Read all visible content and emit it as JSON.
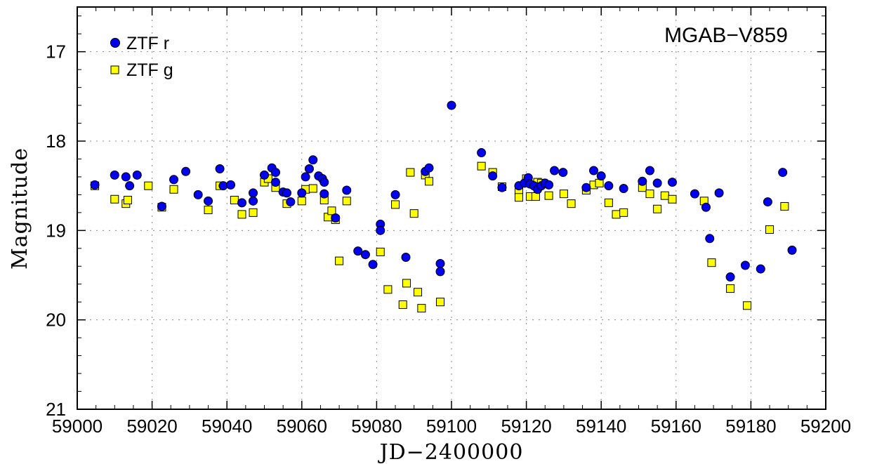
{
  "chart_data": {
    "type": "scatter",
    "title": "MGAB−V859",
    "xlabel": "JD−2400000",
    "ylabel": "Magnitude",
    "xlim": [
      59000,
      59200
    ],
    "ylim": [
      21,
      16.5
    ],
    "y_inverted": true,
    "grid": true,
    "legend_position": "top-left",
    "x_ticks": [
      "59000",
      "59020",
      "59040",
      "59060",
      "59080",
      "59100",
      "59120",
      "59140",
      "59160",
      "59180",
      "59200"
    ],
    "y_ticks": [
      "17",
      "18",
      "19",
      "20",
      "21"
    ],
    "series": [
      {
        "name": "ZTF r",
        "marker": "circle",
        "color": "#0000ee",
        "points": [
          [
            59004.7,
            18.49
          ],
          [
            59010,
            18.38
          ],
          [
            59013,
            18.4
          ],
          [
            59014,
            18.5
          ],
          [
            59016,
            18.38
          ],
          [
            59022.6,
            18.73
          ],
          [
            59025.8,
            18.43
          ],
          [
            59029,
            18.34
          ],
          [
            59032.3,
            18.6
          ],
          [
            59035,
            18.67
          ],
          [
            59038.1,
            18.31
          ],
          [
            59039,
            18.5
          ],
          [
            59041,
            18.49
          ],
          [
            59044,
            18.69
          ],
          [
            59047,
            18.58
          ],
          [
            59047,
            18.67
          ],
          [
            59050,
            18.38
          ],
          [
            59052,
            18.3
          ],
          [
            59053,
            18.46
          ],
          [
            59053,
            18.35
          ],
          [
            59055,
            18.57
          ],
          [
            59056,
            18.58
          ],
          [
            59057,
            18.68
          ],
          [
            59060,
            18.58
          ],
          [
            59061,
            18.4
          ],
          [
            59062,
            18.31
          ],
          [
            59063,
            18.21
          ],
          [
            59064.5,
            18.39
          ],
          [
            59065.5,
            18.42
          ],
          [
            59066,
            18.46
          ],
          [
            59066,
            18.59
          ],
          [
            59069,
            18.86
          ],
          [
            59072,
            18.55
          ],
          [
            59075,
            19.23
          ],
          [
            59077,
            19.27
          ],
          [
            59079,
            19.38
          ],
          [
            59081,
            18.93
          ],
          [
            59081,
            19.0
          ],
          [
            59085,
            18.6
          ],
          [
            59087.8,
            19.3
          ],
          [
            59093,
            18.34
          ],
          [
            59094,
            18.3
          ],
          [
            59097,
            19.37
          ],
          [
            59097,
            19.46
          ],
          [
            59100,
            17.6
          ],
          [
            59108,
            18.13
          ],
          [
            59111,
            18.39
          ],
          [
            59113.5,
            18.52
          ],
          [
            59118,
            18.5
          ],
          [
            59119.5,
            18.47
          ],
          [
            59120.5,
            18.41
          ],
          [
            59121,
            18.48
          ],
          [
            59122,
            18.5
          ],
          [
            59123,
            18.54
          ],
          [
            59124,
            18.5
          ],
          [
            59125,
            18.47
          ],
          [
            59126,
            18.49
          ],
          [
            59127.5,
            18.33
          ],
          [
            59129.8,
            18.35
          ],
          [
            59136,
            18.52
          ],
          [
            59138,
            18.33
          ],
          [
            59140,
            18.39
          ],
          [
            59142,
            18.5
          ],
          [
            59146,
            18.53
          ],
          [
            59151,
            18.45
          ],
          [
            59153,
            18.33
          ],
          [
            59155,
            18.47
          ],
          [
            59159,
            18.46
          ],
          [
            59165,
            18.59
          ],
          [
            59168,
            18.74
          ],
          [
            59169,
            19.09
          ],
          [
            59171.5,
            18.58
          ],
          [
            59174.5,
            19.52
          ],
          [
            59178.5,
            19.39
          ],
          [
            59182.6,
            19.43
          ],
          [
            59184.5,
            18.68
          ],
          [
            59188.5,
            18.35
          ],
          [
            59191,
            19.22
          ]
        ]
      },
      {
        "name": "ZTF g",
        "marker": "square",
        "color": "#ffff00",
        "points": [
          [
            59004.7,
            18.5
          ],
          [
            59010,
            18.65
          ],
          [
            59013,
            18.7
          ],
          [
            59013.5,
            18.66
          ],
          [
            59019,
            18.5
          ],
          [
            59022.6,
            18.74
          ],
          [
            59025.8,
            18.54
          ],
          [
            59035,
            18.77
          ],
          [
            59038.1,
            18.5
          ],
          [
            59042,
            18.66
          ],
          [
            59044,
            18.82
          ],
          [
            59047,
            18.8
          ],
          [
            59050,
            18.46
          ],
          [
            59051,
            18.42
          ],
          [
            59053,
            18.52
          ],
          [
            59056,
            18.7
          ],
          [
            59060,
            18.67
          ],
          [
            59061,
            18.54
          ],
          [
            59063,
            18.53
          ],
          [
            59066,
            18.66
          ],
          [
            59067,
            18.85
          ],
          [
            59068,
            18.78
          ],
          [
            59069,
            18.88
          ],
          [
            59070,
            19.34
          ],
          [
            59072,
            18.67
          ],
          [
            59081,
            19.24
          ],
          [
            59083,
            19.66
          ],
          [
            59085,
            18.71
          ],
          [
            59087,
            19.83
          ],
          [
            59088,
            19.59
          ],
          [
            59089,
            18.35
          ],
          [
            59090,
            18.81
          ],
          [
            59091,
            19.69
          ],
          [
            59092,
            19.87
          ],
          [
            59093,
            18.38
          ],
          [
            59094,
            18.45
          ],
          [
            59097,
            19.8
          ],
          [
            59108,
            18.28
          ],
          [
            59111,
            18.35
          ],
          [
            59113.5,
            18.51
          ],
          [
            59118,
            18.56
          ],
          [
            59118,
            18.63
          ],
          [
            59120,
            18.42
          ],
          [
            59121,
            18.62
          ],
          [
            59122.5,
            18.62
          ],
          [
            59123,
            18.46
          ],
          [
            59124,
            18.47
          ],
          [
            59126,
            18.61
          ],
          [
            59130,
            18.59
          ],
          [
            59132,
            18.7
          ],
          [
            59136,
            18.55
          ],
          [
            59138,
            18.49
          ],
          [
            59139.5,
            18.47
          ],
          [
            59142,
            18.69
          ],
          [
            59144,
            18.82
          ],
          [
            59146,
            18.8
          ],
          [
            59151,
            18.52
          ],
          [
            59153,
            18.59
          ],
          [
            59155,
            18.76
          ],
          [
            59157,
            18.61
          ],
          [
            59159,
            18.65
          ],
          [
            59167.5,
            18.67
          ],
          [
            59169.5,
            19.36
          ],
          [
            59174.5,
            19.65
          ],
          [
            59179,
            19.84
          ],
          [
            59185,
            18.99
          ],
          [
            59189,
            18.73
          ]
        ]
      }
    ]
  }
}
